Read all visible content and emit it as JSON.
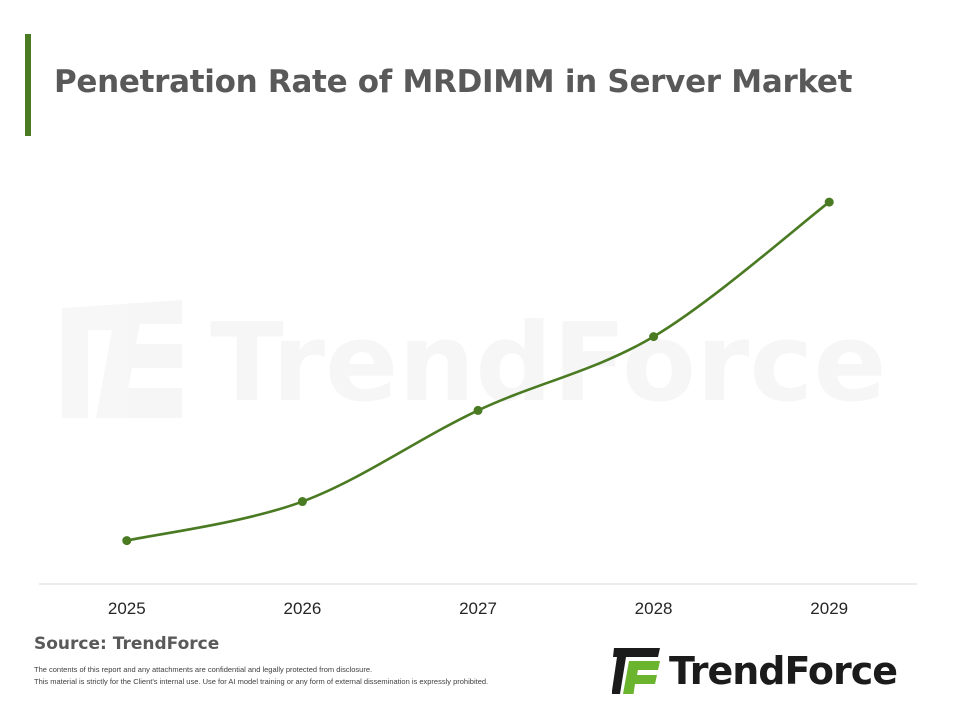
{
  "header": {
    "title": "Penetration Rate of MRDIMM in Server Market"
  },
  "chart_data": {
    "type": "line",
    "title": "Penetration Rate of MRDIMM in Server Market",
    "xlabel": "",
    "ylabel": "",
    "categories": [
      "2025",
      "2026",
      "2027",
      "2028",
      "2029"
    ],
    "series": [
      {
        "values": [
          10,
          19,
          40,
          57,
          88
        ]
      }
    ],
    "ylim": [
      0,
      100
    ],
    "grid": false,
    "y_axis_visible": false,
    "line_color": "#4a7a22",
    "baseline_color": "#d9d9d9"
  },
  "watermark": {
    "text": "TrendForce"
  },
  "footer": {
    "source": "Source: TrendForce",
    "disclaimer_1": "The contents of this report and any attachments are confidential and legally protected from disclosure.",
    "disclaimer_2": "This material is strictly for the Client's internal use. Use for AI model training or any form of external dissemination is expressly prohibited."
  },
  "brand": {
    "name": "TrendForce",
    "accent_color": "#6bb42d",
    "dark_color": "#1b1b1b"
  }
}
